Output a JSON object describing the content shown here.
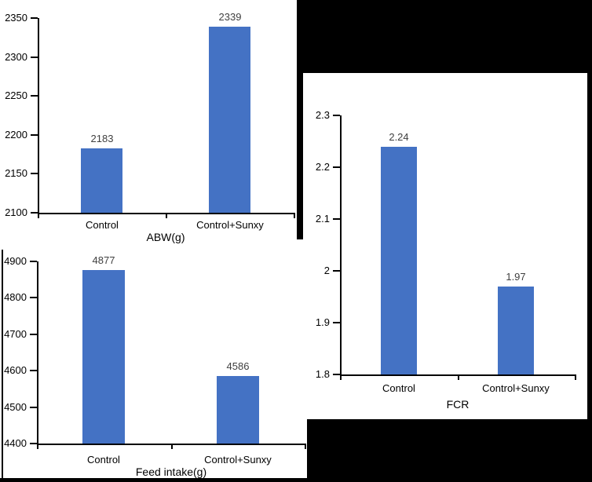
{
  "canvas": {
    "background": "#000000",
    "panel_background": "#ffffff"
  },
  "styles": {
    "bar_color": "#4472C4",
    "axis_color": "#000000",
    "text_color": "#000000",
    "data_label_color": "#404040"
  },
  "chart_data": [
    {
      "id": "abw",
      "type": "bar",
      "title": "ABW(g)",
      "categories": [
        "Control",
        "Control+Sunxy"
      ],
      "values": [
        2183,
        2339
      ],
      "data_labels": [
        "2183",
        "2339"
      ],
      "ylim": [
        2100,
        2350
      ],
      "ytick_labels": [
        "2100",
        "2150",
        "2200",
        "2250",
        "2300",
        "2350"
      ],
      "grid": false,
      "legend": false
    },
    {
      "id": "feed",
      "type": "bar",
      "title": "Feed intake(g)",
      "categories": [
        "Control",
        "Control+Sunxy"
      ],
      "values": [
        4877,
        4586
      ],
      "data_labels": [
        "4877",
        "4586"
      ],
      "ylim": [
        4400,
        4900
      ],
      "ytick_labels": [
        "4400",
        "4500",
        "4600",
        "4700",
        "4800",
        "4900"
      ],
      "grid": false,
      "legend": false
    },
    {
      "id": "fcr",
      "type": "bar",
      "title": "FCR",
      "categories": [
        "Control",
        "Control+Sunxy"
      ],
      "values": [
        2.24,
        1.97
      ],
      "data_labels": [
        "2.24",
        "1.97"
      ],
      "ylim": [
        1.8,
        2.3
      ],
      "ytick_labels": [
        "1.8",
        "1.9",
        "2",
        "2.1",
        "2.2",
        "2.3"
      ],
      "grid": false,
      "legend": false
    }
  ]
}
